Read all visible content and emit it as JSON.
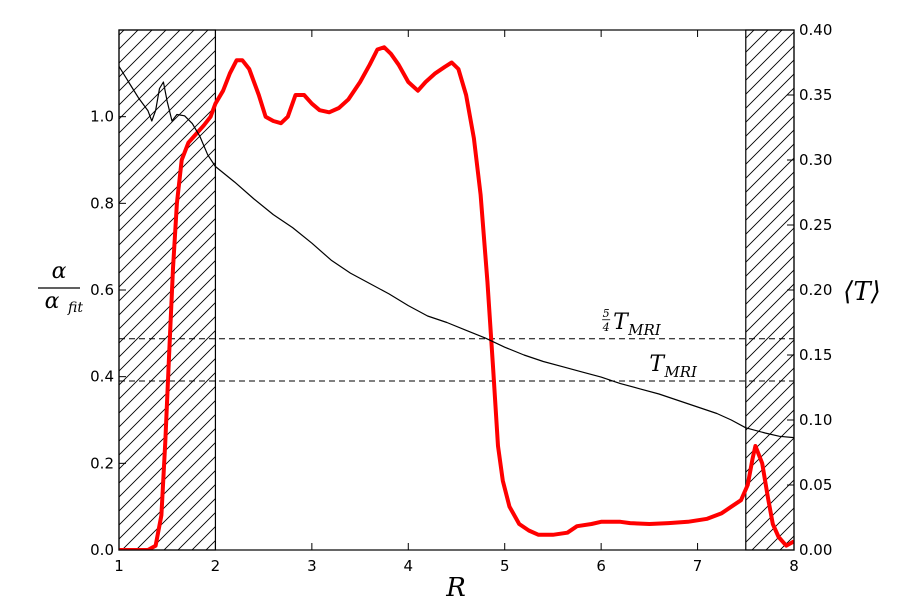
{
  "chart_data": {
    "type": "line",
    "xlabel": "R",
    "ylabel_left": {
      "numerator": "α",
      "denominator": "α",
      "denominator_sub": "fit"
    },
    "ylabel_right": "⟨T⟩",
    "xlim": [
      1,
      8
    ],
    "ylim_left": [
      0,
      1.2
    ],
    "ylim_right": [
      0,
      0.4
    ],
    "x_ticks": [
      1,
      2,
      3,
      4,
      5,
      6,
      7,
      8
    ],
    "x_tick_labels": [
      "1",
      "2",
      "3",
      "4",
      "5",
      "6",
      "7",
      "8"
    ],
    "y_left_ticks": [
      0.0,
      0.2,
      0.4,
      0.6,
      0.8,
      1.0
    ],
    "y_left_tick_labels": [
      "0.0",
      "0.2",
      "0.4",
      "0.6",
      "0.8",
      "1.0"
    ],
    "y_right_ticks": [
      0.0,
      0.05,
      0.1,
      0.15,
      0.2,
      0.25,
      0.3,
      0.35,
      0.4
    ],
    "y_right_tick_labels": [
      "0.00",
      "0.05",
      "0.10",
      "0.15",
      "0.20",
      "0.25",
      "0.30",
      "0.35",
      "0.40"
    ],
    "grid": false,
    "hatched_regions": [
      [
        1,
        2
      ],
      [
        7.5,
        8
      ]
    ],
    "reference_lines": [
      {
        "label_prefix": "5/4",
        "label": "T",
        "sub": "MRI",
        "y_right": 0.1625,
        "label_x": 6.0
      },
      {
        "label": "T",
        "sub": "MRI",
        "y_right": 0.13,
        "label_x": 6.5
      }
    ],
    "series": [
      {
        "axis": "left",
        "color": "#ff0000",
        "points": [
          [
            1.0,
            0.0
          ],
          [
            1.3,
            0.0
          ],
          [
            1.38,
            0.01
          ],
          [
            1.44,
            0.08
          ],
          [
            1.48,
            0.25
          ],
          [
            1.52,
            0.45
          ],
          [
            1.56,
            0.65
          ],
          [
            1.6,
            0.8
          ],
          [
            1.65,
            0.9
          ],
          [
            1.72,
            0.94
          ],
          [
            1.8,
            0.96
          ],
          [
            1.88,
            0.98
          ],
          [
            1.95,
            1.0
          ],
          [
            2.0,
            1.03
          ],
          [
            2.08,
            1.06
          ],
          [
            2.15,
            1.1
          ],
          [
            2.22,
            1.13
          ],
          [
            2.28,
            1.13
          ],
          [
            2.35,
            1.11
          ],
          [
            2.45,
            1.05
          ],
          [
            2.52,
            1.0
          ],
          [
            2.6,
            0.99
          ],
          [
            2.68,
            0.985
          ],
          [
            2.75,
            1.0
          ],
          [
            2.83,
            1.05
          ],
          [
            2.92,
            1.05
          ],
          [
            3.0,
            1.03
          ],
          [
            3.08,
            1.015
          ],
          [
            3.18,
            1.01
          ],
          [
            3.28,
            1.02
          ],
          [
            3.38,
            1.04
          ],
          [
            3.5,
            1.08
          ],
          [
            3.6,
            1.12
          ],
          [
            3.68,
            1.155
          ],
          [
            3.75,
            1.16
          ],
          [
            3.82,
            1.145
          ],
          [
            3.9,
            1.12
          ],
          [
            4.0,
            1.08
          ],
          [
            4.1,
            1.06
          ],
          [
            4.18,
            1.08
          ],
          [
            4.28,
            1.1
          ],
          [
            4.38,
            1.115
          ],
          [
            4.45,
            1.125
          ],
          [
            4.52,
            1.11
          ],
          [
            4.6,
            1.05
          ],
          [
            4.68,
            0.95
          ],
          [
            4.75,
            0.82
          ],
          [
            4.82,
            0.62
          ],
          [
            4.88,
            0.42
          ],
          [
            4.93,
            0.24
          ],
          [
            4.98,
            0.16
          ],
          [
            5.05,
            0.1
          ],
          [
            5.15,
            0.06
          ],
          [
            5.25,
            0.045
          ],
          [
            5.35,
            0.035
          ],
          [
            5.5,
            0.035
          ],
          [
            5.65,
            0.04
          ],
          [
            5.75,
            0.055
          ],
          [
            5.9,
            0.06
          ],
          [
            6.0,
            0.065
          ],
          [
            6.1,
            0.065
          ],
          [
            6.2,
            0.065
          ],
          [
            6.3,
            0.062
          ],
          [
            6.5,
            0.06
          ],
          [
            6.7,
            0.062
          ],
          [
            6.9,
            0.065
          ],
          [
            7.1,
            0.072
          ],
          [
            7.25,
            0.085
          ],
          [
            7.35,
            0.1
          ],
          [
            7.45,
            0.115
          ],
          [
            7.52,
            0.15
          ],
          [
            7.57,
            0.21
          ],
          [
            7.6,
            0.24
          ],
          [
            7.67,
            0.2
          ],
          [
            7.73,
            0.12
          ],
          [
            7.78,
            0.06
          ],
          [
            7.84,
            0.03
          ],
          [
            7.88,
            0.02
          ],
          [
            7.92,
            0.01
          ],
          [
            8.0,
            0.02
          ]
        ]
      },
      {
        "axis": "right",
        "color": "#000000",
        "points": [
          [
            1.0,
            0.372
          ],
          [
            1.1,
            0.36
          ],
          [
            1.2,
            0.348
          ],
          [
            1.3,
            0.338
          ],
          [
            1.34,
            0.33
          ],
          [
            1.38,
            0.338
          ],
          [
            1.42,
            0.355
          ],
          [
            1.46,
            0.36
          ],
          [
            1.5,
            0.345
          ],
          [
            1.55,
            0.33
          ],
          [
            1.6,
            0.335
          ],
          [
            1.68,
            0.334
          ],
          [
            1.76,
            0.328
          ],
          [
            1.84,
            0.318
          ],
          [
            1.92,
            0.304
          ],
          [
            2.0,
            0.295
          ],
          [
            2.2,
            0.283
          ],
          [
            2.4,
            0.27
          ],
          [
            2.6,
            0.258
          ],
          [
            2.8,
            0.248
          ],
          [
            3.0,
            0.236
          ],
          [
            3.2,
            0.223
          ],
          [
            3.4,
            0.213
          ],
          [
            3.6,
            0.205
          ],
          [
            3.8,
            0.197
          ],
          [
            4.0,
            0.188
          ],
          [
            4.2,
            0.18
          ],
          [
            4.4,
            0.175
          ],
          [
            4.6,
            0.169
          ],
          [
            4.8,
            0.163
          ],
          [
            5.0,
            0.156
          ],
          [
            5.2,
            0.15
          ],
          [
            5.4,
            0.145
          ],
          [
            5.6,
            0.141
          ],
          [
            5.8,
            0.137
          ],
          [
            6.0,
            0.133
          ],
          [
            6.2,
            0.128
          ],
          [
            6.4,
            0.124
          ],
          [
            6.6,
            0.12
          ],
          [
            6.8,
            0.115
          ],
          [
            7.0,
            0.11
          ],
          [
            7.2,
            0.105
          ],
          [
            7.35,
            0.1
          ],
          [
            7.5,
            0.094
          ],
          [
            7.7,
            0.09
          ],
          [
            7.85,
            0.0875
          ],
          [
            8.0,
            0.0865
          ]
        ]
      }
    ]
  }
}
